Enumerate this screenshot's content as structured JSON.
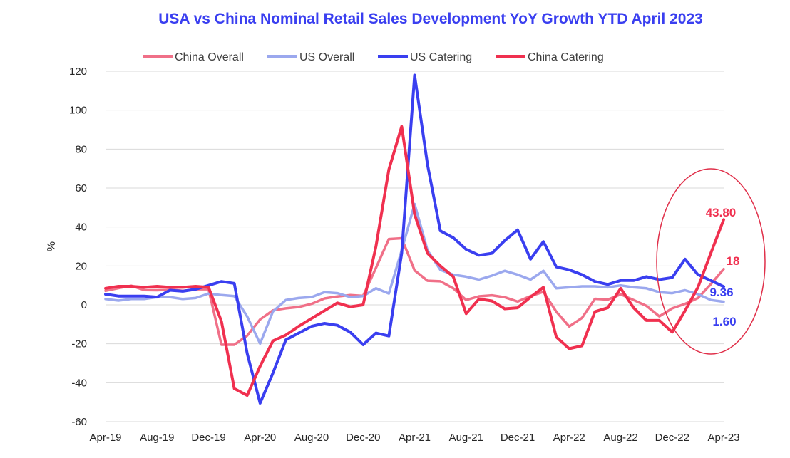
{
  "chart_data": {
    "type": "line",
    "title": "USA vs China Nominal Retail Sales Development YoY Growth YTD April 2023",
    "ylabel": "%",
    "xlabel": "",
    "ylim": [
      -60,
      120
    ],
    "yticks": [
      "120",
      "100",
      "80",
      "60",
      "40",
      "20",
      "0",
      "-20",
      "-40",
      "-60"
    ],
    "grid": "horizontal",
    "legend_position": "top",
    "x": [
      "Apr-19",
      "May-19",
      "Jun-19",
      "Jul-19",
      "Aug-19",
      "Sep-19",
      "Oct-19",
      "Nov-19",
      "Dec-19",
      "Jan-20",
      "Feb-20",
      "Mar-20",
      "Apr-20",
      "May-20",
      "Jun-20",
      "Jul-20",
      "Aug-20",
      "Sep-20",
      "Oct-20",
      "Nov-20",
      "Dec-20",
      "Jan-21",
      "Feb-21",
      "Mar-21",
      "Apr-21",
      "May-21",
      "Jun-21",
      "Jul-21",
      "Aug-21",
      "Sep-21",
      "Oct-21",
      "Nov-21",
      "Dec-21",
      "Jan-22",
      "Feb-22",
      "Mar-22",
      "Apr-22",
      "May-22",
      "Jun-22",
      "Jul-22",
      "Aug-22",
      "Sep-22",
      "Oct-22",
      "Nov-22",
      "Dec-22",
      "Jan-23",
      "Feb-23",
      "Mar-23",
      "Apr-23"
    ],
    "xtick_labels": [
      "Apr-19",
      "Aug-19",
      "Dec-19",
      "Apr-20",
      "Aug-20",
      "Dec-20",
      "Apr-21",
      "Aug-21",
      "Dec-21",
      "Apr-22",
      "Aug-22",
      "Dec-22",
      "Apr-23"
    ],
    "series": [
      {
        "name": "China Overall",
        "color": "#f07088",
        "values": [
          7.2,
          8.6,
          9.8,
          7.6,
          7.5,
          7.8,
          7.2,
          8.0,
          8.0,
          -20.5,
          -20.5,
          -15.8,
          -7.5,
          -2.8,
          -1.8,
          -1.1,
          0.5,
          3.3,
          4.3,
          5.0,
          4.6,
          19.0,
          33.8,
          34.2,
          17.7,
          12.4,
          12.1,
          8.5,
          2.5,
          4.4,
          4.9,
          3.9,
          1.7,
          4.5,
          6.7,
          -3.5,
          -11.1,
          -6.7,
          3.1,
          2.7,
          5.4,
          2.5,
          -0.5,
          -5.9,
          -1.8,
          0.5,
          3.5,
          10.6,
          18.4
        ]
      },
      {
        "name": "US Overall",
        "color": "#9ba8ee",
        "values": [
          3.0,
          2.2,
          3.0,
          3.0,
          4.0,
          4.0,
          3.0,
          3.5,
          5.8,
          5.0,
          4.5,
          -6.0,
          -19.9,
          -3.4,
          2.5,
          3.5,
          4.0,
          6.5,
          6.0,
          4.0,
          4.5,
          8.5,
          5.8,
          28.0,
          51.8,
          28.0,
          18.0,
          15.5,
          14.5,
          13.0,
          15.0,
          17.5,
          15.5,
          13.0,
          17.5,
          8.5,
          9.0,
          9.5,
          9.5,
          9.0,
          10.0,
          9.0,
          8.5,
          6.5,
          6.0,
          7.5,
          5.5,
          2.5,
          1.6
        ]
      },
      {
        "name": "US Catering",
        "color": "#3a3ff0",
        "values": [
          5.5,
          4.5,
          4.5,
          4.5,
          4.0,
          7.5,
          7.0,
          8.0,
          10.0,
          12.0,
          11.0,
          -25.0,
          -50.5,
          -35.0,
          -18.0,
          -14.5,
          -11.0,
          -9.5,
          -10.5,
          -14.0,
          -20.5,
          -14.5,
          -16.0,
          26.5,
          118.0,
          72.0,
          38.0,
          34.5,
          28.5,
          25.5,
          26.5,
          33.0,
          38.5,
          23.5,
          32.5,
          19.5,
          18.0,
          15.5,
          12.0,
          10.5,
          12.5,
          12.5,
          14.5,
          13.0,
          14.0,
          23.5,
          15.5,
          12.5,
          9.36
        ]
      },
      {
        "name": "China Catering",
        "color": "#f0304f",
        "values": [
          8.5,
          9.5,
          9.5,
          9.0,
          9.5,
          9.0,
          9.0,
          9.5,
          9.0,
          -8.5,
          -43.0,
          -46.5,
          -31.5,
          -18.5,
          -15.5,
          -11.0,
          -7.0,
          -3.0,
          1.0,
          -1.0,
          0.0,
          30.0,
          69.5,
          91.6,
          46.5,
          26.5,
          20.0,
          14.5,
          -4.5,
          3.0,
          2.0,
          -2.0,
          -1.5,
          4.0,
          9.0,
          -16.5,
          -22.5,
          -21.0,
          -3.5,
          -1.5,
          8.5,
          -1.5,
          -8.0,
          -8.0,
          -14.0,
          -3.0,
          9.0,
          26.5,
          43.8
        ]
      }
    ],
    "end_labels": [
      {
        "series": "China Catering",
        "text": "43.80",
        "color": "#f0304f"
      },
      {
        "series": "China Overall",
        "text": "18",
        "color": "#f0304f"
      },
      {
        "series": "US Catering",
        "text": "9.36",
        "color": "#3a3ff0"
      },
      {
        "series": "US Overall",
        "text": "1.60",
        "color": "#3a3ff0"
      }
    ],
    "annotation": {
      "shape": "ellipse",
      "color": "#e0304a",
      "highlights": "Dec-22 to Apr-23"
    },
    "title_color": "#3a3ff0",
    "grid_color": "#d9d9d9"
  }
}
